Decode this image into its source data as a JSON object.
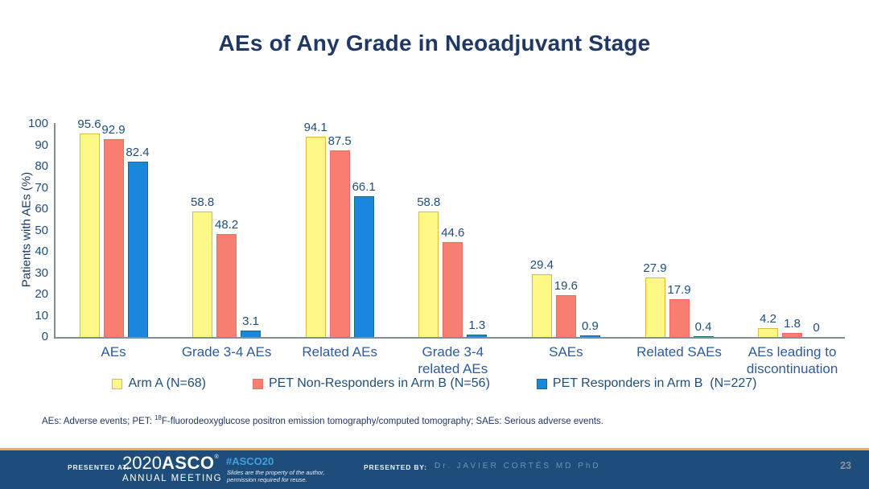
{
  "slide": {
    "title": "AEs of Any Grade in Neoadjuvant Stage"
  },
  "chart_data": {
    "type": "bar",
    "title": "AEs of Any Grade in Neoadjuvant Stage",
    "xlabel": "",
    "ylabel": "Patients with AEs (%)",
    "ylim": [
      0,
      100
    ],
    "ytick_step": 10,
    "grid": false,
    "legend_position": "bottom",
    "value_labels": true,
    "categories": [
      "AEs",
      "Grade 3-4 AEs",
      "Related AEs",
      "Grade 3-4\nrelated AEs",
      "SAEs",
      "Related SAEs",
      "AEs leading to\ndiscontinuation"
    ],
    "series": [
      {
        "name": "Arm A (N=68)",
        "values": [
          95.6,
          58.8,
          94.1,
          58.8,
          29.4,
          27.9,
          4.2
        ],
        "fill": "#FEF886",
        "border": "#DDB93C"
      },
      {
        "name": "PET Non-Responders in Arm B (N=56)",
        "values": [
          92.9,
          48.2,
          87.5,
          44.6,
          19.6,
          17.9,
          1.8
        ],
        "fill": "#F87E72",
        "border": "#F4695F"
      },
      {
        "name": "PET Responders in Arm B  (N=227)",
        "values": [
          82.4,
          3.1,
          66.1,
          1.3,
          0.9,
          0.4,
          0
        ],
        "fill": "#1B86DE",
        "border": "#1B6F72"
      }
    ]
  },
  "footnote": {
    "part1": "AEs: Adverse events; PET: ",
    "sup": "18",
    "part2": "F-fluorodeoxyglucose positron emission tomography/computed tomography; SAEs: Serious adverse events."
  },
  "footer": {
    "presented_at_label": "PRESENTED AT:",
    "logo_year": "2020",
    "logo_name": "ASCO",
    "logo_reg": "®",
    "logo_subtitle": "ANNUAL MEETING",
    "hashtag": "#ASCO20",
    "disclaimer_line1": "Slides are the property of the author,",
    "disclaimer_line2": "permission required for reuse.",
    "presented_by_label": "PRESENTED BY:",
    "presenter": "Dr. JAVIER CORTÉS MD PhD",
    "page_number": "23"
  },
  "colors": {
    "title_text": "#1F3864",
    "axis_line": "#7F8F9B",
    "tick_text": "#1F4E79",
    "category_text": "#2E5B9B",
    "footer_background": "#1E4D7B",
    "footer_gold_line": "#E2B23C",
    "hashtag_text": "#3FA0DC",
    "presenter_text": "#6E93B4"
  }
}
